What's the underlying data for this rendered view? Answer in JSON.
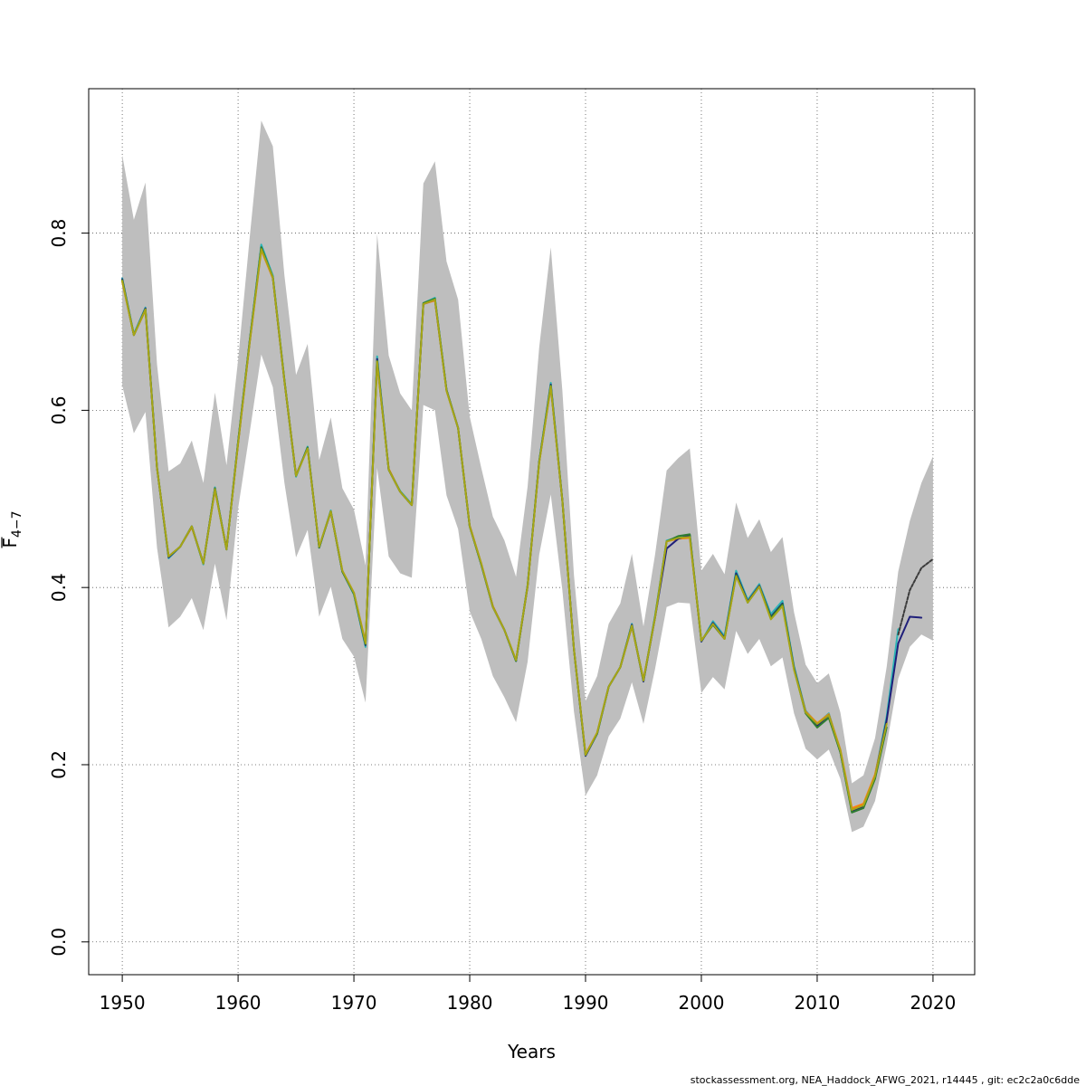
{
  "chart_data": {
    "type": "line",
    "xlabel": "Years",
    "ylabel_main": "F",
    "ylabel_sub": "4−7",
    "xlim": [
      1947.1,
      2023.6
    ],
    "ylim": [
      -0.037,
      0.963
    ],
    "xticks": [
      1950,
      1960,
      1970,
      1980,
      1990,
      2000,
      2010,
      2020
    ],
    "yticks": [
      0.0,
      0.2,
      0.4,
      0.6,
      0.8
    ],
    "ytick_labels": [
      "0.0",
      "0.2",
      "0.4",
      "0.6",
      "0.8"
    ],
    "grid": true,
    "band_color": "#bebebe",
    "band": {
      "x": [
        1950,
        1951,
        1952,
        1953,
        1954,
        1955,
        1956,
        1957,
        1958,
        1959,
        1960,
        1961,
        1962,
        1963,
        1964,
        1965,
        1966,
        1967,
        1968,
        1969,
        1970,
        1971,
        1972,
        1973,
        1974,
        1975,
        1976,
        1977,
        1978,
        1979,
        1980,
        1981,
        1982,
        1983,
        1984,
        1985,
        1986,
        1987,
        1988,
        1989,
        1990,
        1991,
        1992,
        1993,
        1994,
        1995,
        1996,
        1997,
        1998,
        1999,
        2000,
        2001,
        2002,
        2003,
        2004,
        2005,
        2006,
        2007,
        2008,
        2009,
        2010,
        2011,
        2012,
        2013,
        2014,
        2015,
        2016,
        2017,
        2018,
        2019,
        2020
      ],
      "upper": [
        0.888,
        0.815,
        0.857,
        0.652,
        0.531,
        0.54,
        0.566,
        0.518,
        0.62,
        0.538,
        0.657,
        0.795,
        0.927,
        0.898,
        0.752,
        0.64,
        0.675,
        0.544,
        0.592,
        0.512,
        0.488,
        0.425,
        0.799,
        0.662,
        0.619,
        0.6,
        0.856,
        0.881,
        0.768,
        0.725,
        0.593,
        0.535,
        0.48,
        0.453,
        0.412,
        0.514,
        0.671,
        0.784,
        0.622,
        0.414,
        0.272,
        0.3,
        0.359,
        0.382,
        0.438,
        0.356,
        0.437,
        0.532,
        0.546,
        0.557,
        0.419,
        0.438,
        0.415,
        0.496,
        0.456,
        0.477,
        0.44,
        0.457,
        0.372,
        0.313,
        0.292,
        0.303,
        0.259,
        0.179,
        0.188,
        0.23,
        0.31,
        0.418,
        0.475,
        0.518,
        0.548
      ],
      "lower": [
        0.628,
        0.574,
        0.598,
        0.445,
        0.355,
        0.367,
        0.388,
        0.352,
        0.427,
        0.363,
        0.489,
        0.575,
        0.663,
        0.626,
        0.518,
        0.434,
        0.465,
        0.367,
        0.401,
        0.342,
        0.322,
        0.27,
        0.535,
        0.435,
        0.416,
        0.411,
        0.606,
        0.6,
        0.504,
        0.466,
        0.373,
        0.342,
        0.3,
        0.276,
        0.248,
        0.316,
        0.437,
        0.505,
        0.397,
        0.26,
        0.165,
        0.188,
        0.232,
        0.252,
        0.293,
        0.246,
        0.308,
        0.378,
        0.383,
        0.382,
        0.281,
        0.299,
        0.285,
        0.351,
        0.325,
        0.342,
        0.311,
        0.321,
        0.258,
        0.218,
        0.206,
        0.217,
        0.184,
        0.124,
        0.13,
        0.159,
        0.222,
        0.297,
        0.333,
        0.347,
        0.34
      ]
    },
    "series": [
      {
        "color": "#2bb5b5",
        "x": [
          1950,
          1951,
          1952,
          1953,
          1954,
          1955,
          1956,
          1957,
          1958,
          1959,
          1960,
          1961,
          1962,
          1963,
          1964,
          1965,
          1966,
          1967,
          1968,
          1969,
          1970,
          1971,
          1972,
          1973,
          1974,
          1975,
          1976,
          1977,
          1978,
          1979,
          1980,
          1981,
          1982,
          1983,
          1984,
          1985,
          1986,
          1987,
          1988,
          1989,
          1990,
          1991,
          1992,
          1993,
          1994,
          1995,
          1996,
          1997,
          1998,
          1999,
          2000,
          2001,
          2002,
          2003,
          2004,
          2005,
          2006,
          2007,
          2008,
          2009,
          2010,
          2011,
          2012,
          2013,
          2014,
          2015,
          2016,
          2017
        ],
        "values": [
          0.749,
          0.686,
          0.716,
          0.536,
          0.433,
          0.446,
          0.469,
          0.426,
          0.513,
          0.443,
          0.565,
          0.679,
          0.787,
          0.752,
          0.634,
          0.525,
          0.559,
          0.445,
          0.487,
          0.418,
          0.392,
          0.333,
          0.661,
          0.533,
          0.509,
          0.494,
          0.721,
          0.727,
          0.623,
          0.58,
          0.469,
          0.426,
          0.378,
          0.352,
          0.317,
          0.403,
          0.543,
          0.631,
          0.499,
          0.33,
          0.21,
          0.235,
          0.288,
          0.31,
          0.359,
          0.294,
          0.368,
          0.453,
          0.457,
          0.458,
          0.339,
          0.362,
          0.345,
          0.419,
          0.386,
          0.404,
          0.37,
          0.385,
          0.311,
          0.261,
          0.246,
          0.258,
          0.215,
          0.149,
          0.155,
          0.188,
          0.254,
          0.353
        ]
      },
      {
        "color": "#ff7f0e",
        "x": [
          1950,
          1951,
          1952,
          1953,
          1954,
          1955,
          1956,
          1957,
          1958,
          1959,
          1960,
          1961,
          1962,
          1963,
          1964,
          1965,
          1966,
          1967,
          1968,
          1969,
          1970,
          1971,
          1972,
          1973,
          1974,
          1975,
          1976,
          1977,
          1978,
          1979,
          1980,
          1981,
          1982,
          1983,
          1984,
          1985,
          1986,
          1987,
          1988,
          1989,
          1990,
          1991,
          1992,
          1993,
          1994,
          1995,
          1996,
          1997,
          1998,
          1999,
          2000,
          2001,
          2002,
          2003,
          2004,
          2005,
          2006,
          2007,
          2008,
          2009,
          2010,
          2011,
          2012,
          2013,
          2014,
          2015,
          2016
        ],
        "values": [
          0.745,
          0.685,
          0.713,
          0.535,
          0.435,
          0.446,
          0.468,
          0.428,
          0.51,
          0.444,
          0.562,
          0.676,
          0.781,
          0.749,
          0.633,
          0.527,
          0.557,
          0.446,
          0.485,
          0.419,
          0.394,
          0.338,
          0.653,
          0.534,
          0.508,
          0.493,
          0.72,
          0.724,
          0.622,
          0.58,
          0.47,
          0.427,
          0.379,
          0.352,
          0.318,
          0.401,
          0.541,
          0.626,
          0.498,
          0.33,
          0.212,
          0.236,
          0.288,
          0.31,
          0.356,
          0.296,
          0.366,
          0.452,
          0.455,
          0.456,
          0.34,
          0.358,
          0.342,
          0.413,
          0.384,
          0.402,
          0.365,
          0.38,
          0.308,
          0.26,
          0.247,
          0.257,
          0.217,
          0.151,
          0.156,
          0.189,
          0.248
        ]
      },
      {
        "color": "#1f1f7a",
        "x": [
          1950,
          1951,
          1952,
          1953,
          1954,
          1955,
          1956,
          1957,
          1958,
          1959,
          1960,
          1961,
          1962,
          1963,
          1964,
          1965,
          1966,
          1967,
          1968,
          1969,
          1970,
          1971,
          1972,
          1973,
          1974,
          1975,
          1976,
          1977,
          1978,
          1979,
          1980,
          1981,
          1982,
          1983,
          1984,
          1985,
          1986,
          1987,
          1988,
          1989,
          1990,
          1991,
          1992,
          1993,
          1994,
          1995,
          1996,
          1997,
          1998,
          1999,
          2000,
          2001,
          2002,
          2003,
          2004,
          2005,
          2006,
          2007,
          2008,
          2009,
          2010,
          2011,
          2012,
          2013,
          2014,
          2015,
          2016,
          2017,
          2018,
          2019
        ],
        "values": [
          0.748,
          0.685,
          0.715,
          0.535,
          0.434,
          0.446,
          0.469,
          0.427,
          0.512,
          0.443,
          0.564,
          0.678,
          0.784,
          0.75,
          0.633,
          0.526,
          0.558,
          0.445,
          0.486,
          0.418,
          0.393,
          0.335,
          0.658,
          0.533,
          0.508,
          0.493,
          0.72,
          0.725,
          0.623,
          0.58,
          0.469,
          0.426,
          0.378,
          0.352,
          0.317,
          0.402,
          0.542,
          0.629,
          0.498,
          0.33,
          0.21,
          0.235,
          0.288,
          0.31,
          0.358,
          0.294,
          0.366,
          0.444,
          0.455,
          0.459,
          0.339,
          0.36,
          0.343,
          0.416,
          0.384,
          0.402,
          0.367,
          0.382,
          0.309,
          0.259,
          0.244,
          0.256,
          0.214,
          0.148,
          0.153,
          0.186,
          0.25,
          0.337,
          0.367,
          0.366
        ]
      },
      {
        "color": "#3b3b3b",
        "dashed": true,
        "x": [
          2017,
          2018,
          2019,
          2020
        ],
        "values": [
          0.347,
          0.397,
          0.422,
          0.432
        ]
      },
      {
        "color": "#2e7d32",
        "x": [
          1950,
          1951,
          1952,
          1953,
          1954,
          1955,
          1956,
          1957,
          1958,
          1959,
          1960,
          1961,
          1962,
          1963,
          1964,
          1965,
          1966,
          1967,
          1968,
          1969,
          1970,
          1971,
          1972,
          1973,
          1974,
          1975,
          1976,
          1977,
          1978,
          1979,
          1980,
          1981,
          1982,
          1983,
          1984,
          1985,
          1986,
          1987,
          1988,
          1989,
          1990,
          1991,
          1992,
          1993,
          1994,
          1995,
          1996,
          1997,
          1998,
          1999,
          2000,
          2001,
          2002,
          2003,
          2004,
          2005,
          2006,
          2007,
          2008,
          2009,
          2010,
          2011,
          2012,
          2013,
          2014,
          2015,
          2016
        ],
        "values": [
          0.747,
          0.685,
          0.714,
          0.535,
          0.435,
          0.446,
          0.469,
          0.427,
          0.512,
          0.443,
          0.564,
          0.678,
          0.784,
          0.75,
          0.634,
          0.526,
          0.558,
          0.445,
          0.486,
          0.418,
          0.393,
          0.336,
          0.656,
          0.533,
          0.508,
          0.493,
          0.721,
          0.726,
          0.623,
          0.58,
          0.469,
          0.426,
          0.378,
          0.352,
          0.317,
          0.402,
          0.542,
          0.628,
          0.498,
          0.33,
          0.211,
          0.235,
          0.288,
          0.31,
          0.357,
          0.295,
          0.367,
          0.452,
          0.458,
          0.46,
          0.34,
          0.358,
          0.342,
          0.414,
          0.383,
          0.401,
          0.366,
          0.381,
          0.308,
          0.258,
          0.242,
          0.253,
          0.214,
          0.146,
          0.151,
          0.184,
          0.242
        ]
      },
      {
        "color": "#a6a616",
        "x": [
          1950,
          1951,
          1952,
          1953,
          1954,
          1955,
          1956,
          1957,
          1958,
          1959,
          1960,
          1961,
          1962,
          1963,
          1964,
          1965,
          1966,
          1967,
          1968,
          1969,
          1970,
          1971,
          1972,
          1973,
          1974,
          1975,
          1976,
          1977,
          1978,
          1979,
          1980,
          1981,
          1982,
          1983,
          1984,
          1985,
          1986,
          1987,
          1988,
          1989,
          1990,
          1991,
          1992,
          1993,
          1994,
          1995,
          1996,
          1997,
          1998,
          1999,
          2000,
          2001,
          2002,
          2003,
          2004,
          2005,
          2006,
          2007,
          2008,
          2009,
          2010,
          2011,
          2012,
          2013,
          2014,
          2015,
          2016
        ],
        "values": [
          0.746,
          0.685,
          0.714,
          0.535,
          0.435,
          0.446,
          0.469,
          0.427,
          0.511,
          0.443,
          0.563,
          0.677,
          0.782,
          0.75,
          0.633,
          0.526,
          0.557,
          0.446,
          0.486,
          0.419,
          0.394,
          0.337,
          0.655,
          0.533,
          0.508,
          0.493,
          0.72,
          0.725,
          0.622,
          0.58,
          0.469,
          0.427,
          0.378,
          0.352,
          0.318,
          0.402,
          0.541,
          0.627,
          0.498,
          0.33,
          0.211,
          0.236,
          0.288,
          0.31,
          0.357,
          0.295,
          0.366,
          0.452,
          0.456,
          0.457,
          0.34,
          0.359,
          0.342,
          0.413,
          0.383,
          0.401,
          0.364,
          0.379,
          0.307,
          0.259,
          0.246,
          0.256,
          0.216,
          0.149,
          0.154,
          0.187,
          0.246
        ]
      }
    ]
  },
  "footer": {
    "text": "stockassessment.org, NEA_Haddock_AFWG_2021, r14445 , git: ec2c2a0c6dde"
  }
}
